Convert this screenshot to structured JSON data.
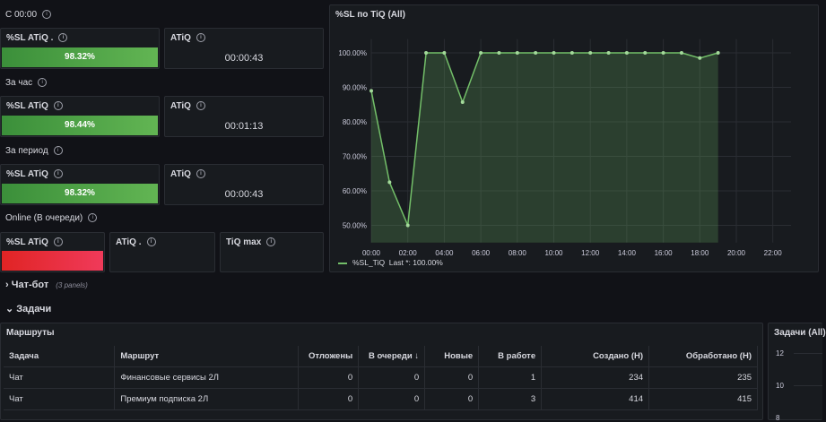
{
  "rows": [
    {
      "label": "С 00:00",
      "panels": [
        {
          "title": "%SL ATiQ .",
          "value": "98.32%"
        },
        {
          "title": "ATiQ",
          "value": "00:00:43"
        }
      ]
    },
    {
      "label": "За час",
      "panels": [
        {
          "title": "%SL ATiQ",
          "value": "98.44%"
        },
        {
          "title": "ATiQ",
          "value": "00:01:13"
        }
      ]
    },
    {
      "label": "За период",
      "panels": [
        {
          "title": "%SL ATiQ",
          "value": "98.32%"
        },
        {
          "title": "ATiQ",
          "value": "00:00:43"
        }
      ]
    },
    {
      "label": "Online (В очереди)",
      "panels": [
        {
          "title": "%SL ATiQ"
        },
        {
          "title": "ATiQ ."
        },
        {
          "title": "TiQ max"
        }
      ]
    }
  ],
  "sections": {
    "chatbot": {
      "label": "Чат-бот",
      "count": "(3 panels)"
    },
    "tasks": {
      "label": "Задачи"
    }
  },
  "table_panel": {
    "title": "Маршруты",
    "columns": [
      "Задача",
      "Маршрут",
      "Отложены",
      "В очереди",
      "Новые",
      "В работе",
      "Создано (Н)",
      "Обработано (Н)"
    ],
    "sort_column": "В очереди",
    "rows": [
      [
        "Чат",
        "Финансовые сервисы 2Л",
        "0",
        "0",
        "0",
        "1",
        "234",
        "235"
      ],
      [
        "Чат",
        "Премиум подписка 2Л",
        "0",
        "0",
        "0",
        "3",
        "414",
        "415"
      ]
    ]
  },
  "side_panel": {
    "title": "Задачи (All)",
    "ticks": [
      "12",
      "10",
      "8"
    ]
  },
  "colors": {
    "green": "#73bf69",
    "red": "#e02f44",
    "panel_bg": "#181b1f",
    "page_bg": "#111217"
  },
  "chart_data": {
    "type": "area",
    "title": "%SL по TiQ (All)",
    "x": [
      "00:00",
      "01:00",
      "02:00",
      "03:00",
      "04:00",
      "05:00",
      "06:00",
      "07:00",
      "08:00",
      "09:00",
      "10:00",
      "11:00",
      "12:00",
      "13:00",
      "14:00",
      "15:00",
      "16:00",
      "17:00",
      "18:00",
      "19:00"
    ],
    "x_ticks": [
      "00:00",
      "02:00",
      "04:00",
      "06:00",
      "08:00",
      "10:00",
      "12:00",
      "14:00",
      "16:00",
      "18:00",
      "20:00",
      "22:00"
    ],
    "xlim": [
      "00:00",
      "23:00"
    ],
    "series": [
      {
        "name": "%SL_TiQ",
        "values": [
          89,
          62.5,
          50,
          100,
          100,
          85.7,
          100,
          100,
          100,
          100,
          100,
          100,
          100,
          100,
          100,
          100,
          100,
          100,
          98.5,
          100
        ]
      }
    ],
    "y_ticks": [
      "50.00%",
      "60.00%",
      "70.00%",
      "80.00%",
      "90.00%",
      "100.00%"
    ],
    "ylim": [
      45,
      104
    ],
    "legend": {
      "name": "%SL_TiQ",
      "stat": "Last *: 100.00%"
    },
    "grid": true,
    "legend_position": "bottom-left"
  }
}
